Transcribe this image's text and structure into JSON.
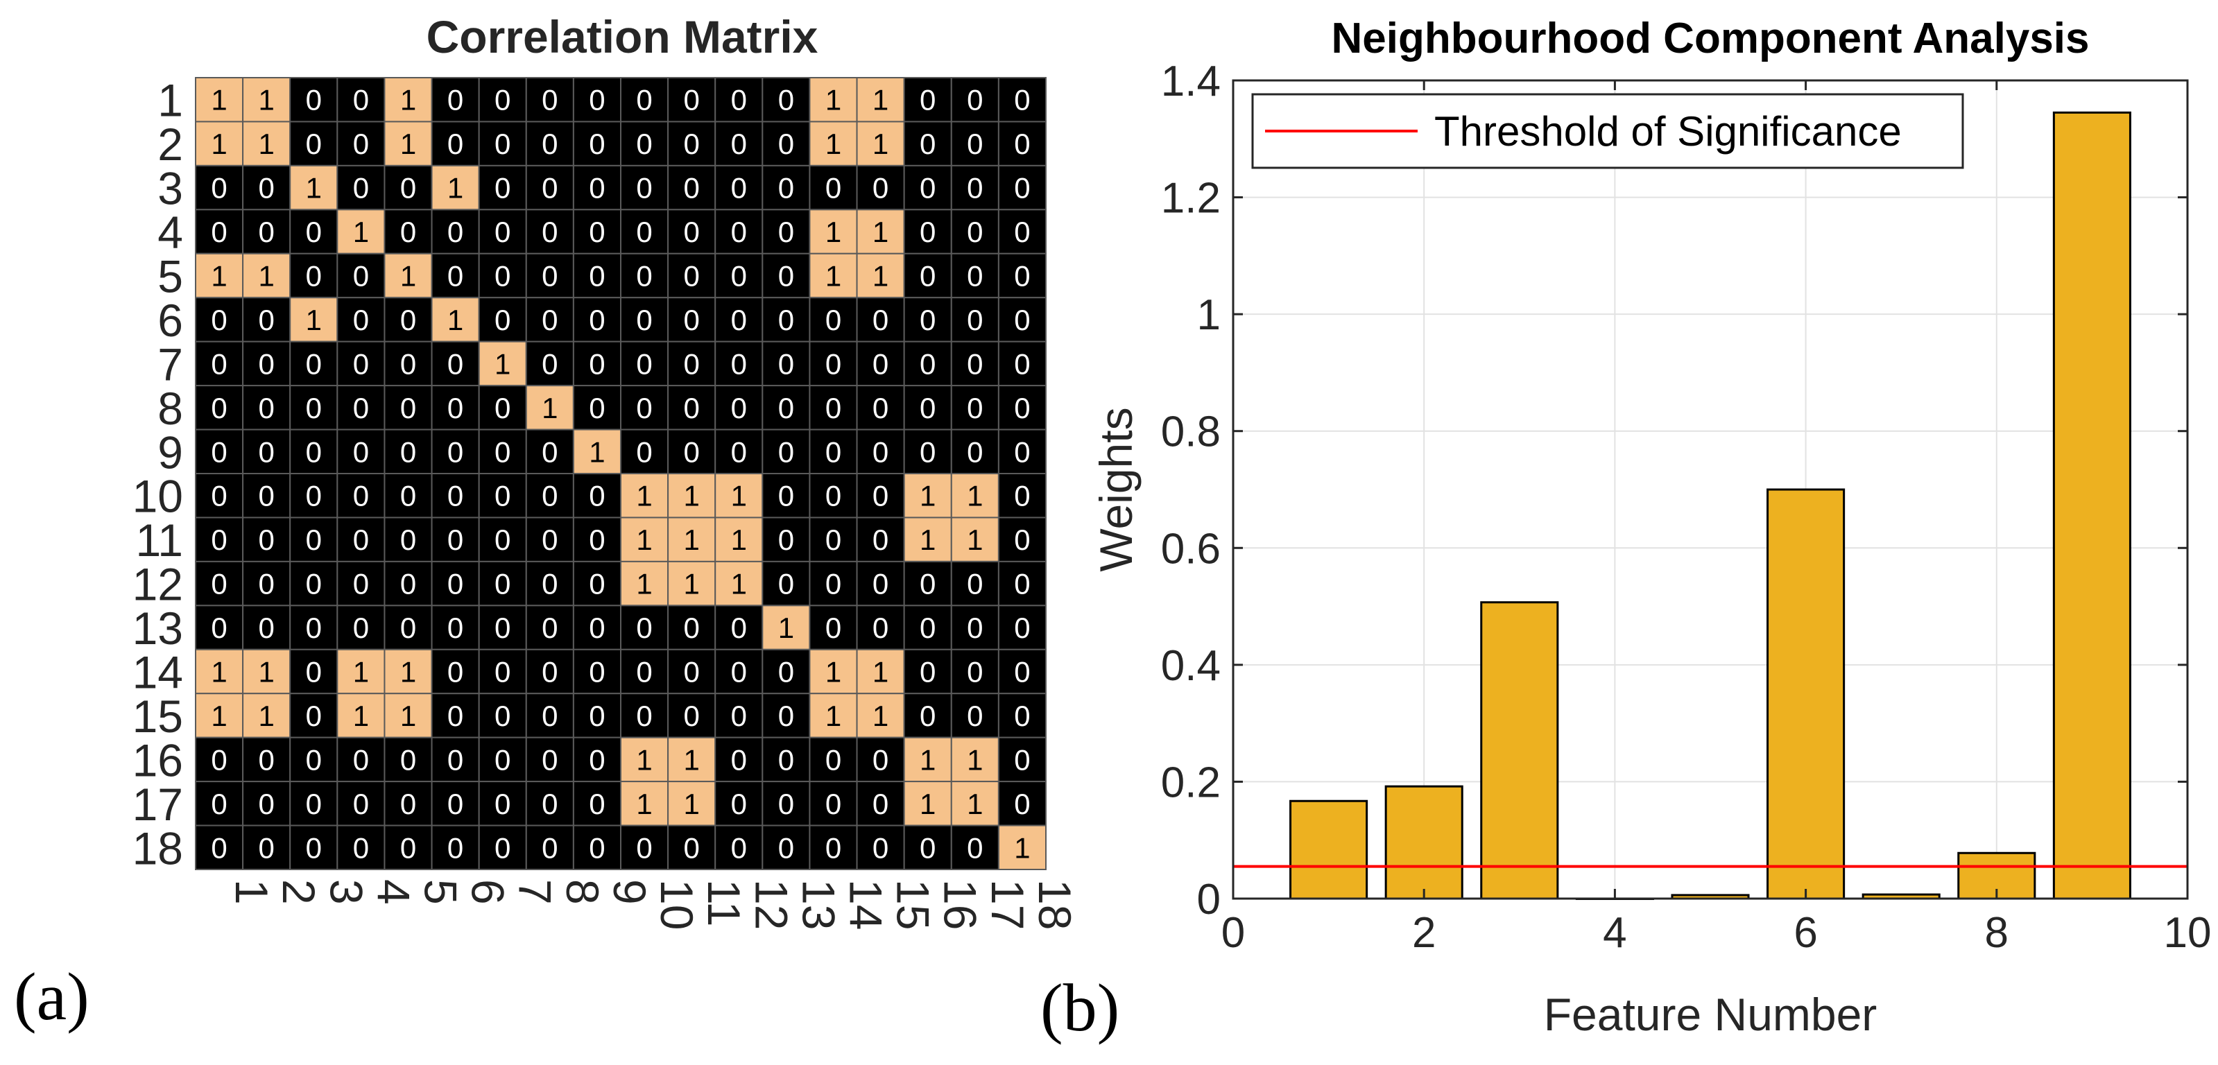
{
  "colors": {
    "matrix_background": "#000000",
    "matrix_one_cell": "#f6c28b",
    "matrix_grid": "#5a5a5a",
    "bar_fill": "#edb120",
    "bar_edge": "#000000",
    "threshold_line": "#ff0000",
    "gridline": "#e2e2e2",
    "axis_text": "#262626"
  },
  "panel_labels": {
    "a": "(a)",
    "b": "(b)"
  },
  "chart_data": [
    {
      "type": "heatmap",
      "title": "Correlation Matrix",
      "row_labels": [
        "1",
        "2",
        "3",
        "4",
        "5",
        "6",
        "7",
        "8",
        "9",
        "10",
        "11",
        "12",
        "13",
        "14",
        "15",
        "16",
        "17",
        "18"
      ],
      "col_labels": [
        "1",
        "2",
        "3",
        "4",
        "5",
        "6",
        "7",
        "8",
        "9",
        "10",
        "11",
        "12",
        "13",
        "14",
        "15",
        "16",
        "17",
        "18"
      ],
      "values": [
        [
          1,
          1,
          0,
          0,
          1,
          0,
          0,
          0,
          0,
          0,
          0,
          0,
          0,
          1,
          1,
          0,
          0,
          0
        ],
        [
          1,
          1,
          0,
          0,
          1,
          0,
          0,
          0,
          0,
          0,
          0,
          0,
          0,
          1,
          1,
          0,
          0,
          0
        ],
        [
          0,
          0,
          1,
          0,
          0,
          1,
          0,
          0,
          0,
          0,
          0,
          0,
          0,
          0,
          0,
          0,
          0,
          0
        ],
        [
          0,
          0,
          0,
          1,
          0,
          0,
          0,
          0,
          0,
          0,
          0,
          0,
          0,
          1,
          1,
          0,
          0,
          0
        ],
        [
          1,
          1,
          0,
          0,
          1,
          0,
          0,
          0,
          0,
          0,
          0,
          0,
          0,
          1,
          1,
          0,
          0,
          0
        ],
        [
          0,
          0,
          1,
          0,
          0,
          1,
          0,
          0,
          0,
          0,
          0,
          0,
          0,
          0,
          0,
          0,
          0,
          0
        ],
        [
          0,
          0,
          0,
          0,
          0,
          0,
          1,
          0,
          0,
          0,
          0,
          0,
          0,
          0,
          0,
          0,
          0,
          0
        ],
        [
          0,
          0,
          0,
          0,
          0,
          0,
          0,
          1,
          0,
          0,
          0,
          0,
          0,
          0,
          0,
          0,
          0,
          0
        ],
        [
          0,
          0,
          0,
          0,
          0,
          0,
          0,
          0,
          1,
          0,
          0,
          0,
          0,
          0,
          0,
          0,
          0,
          0
        ],
        [
          0,
          0,
          0,
          0,
          0,
          0,
          0,
          0,
          0,
          1,
          1,
          1,
          0,
          0,
          0,
          1,
          1,
          0
        ],
        [
          0,
          0,
          0,
          0,
          0,
          0,
          0,
          0,
          0,
          1,
          1,
          1,
          0,
          0,
          0,
          1,
          1,
          0
        ],
        [
          0,
          0,
          0,
          0,
          0,
          0,
          0,
          0,
          0,
          1,
          1,
          1,
          0,
          0,
          0,
          0,
          0,
          0
        ],
        [
          0,
          0,
          0,
          0,
          0,
          0,
          0,
          0,
          0,
          0,
          0,
          0,
          1,
          0,
          0,
          0,
          0,
          0
        ],
        [
          1,
          1,
          0,
          1,
          1,
          0,
          0,
          0,
          0,
          0,
          0,
          0,
          0,
          1,
          1,
          0,
          0,
          0
        ],
        [
          1,
          1,
          0,
          1,
          1,
          0,
          0,
          0,
          0,
          0,
          0,
          0,
          0,
          1,
          1,
          0,
          0,
          0
        ],
        [
          0,
          0,
          0,
          0,
          0,
          0,
          0,
          0,
          0,
          1,
          1,
          0,
          0,
          0,
          0,
          1,
          1,
          0
        ],
        [
          0,
          0,
          0,
          0,
          0,
          0,
          0,
          0,
          0,
          1,
          1,
          0,
          0,
          0,
          0,
          1,
          1,
          0
        ],
        [
          0,
          0,
          0,
          0,
          0,
          0,
          0,
          0,
          0,
          0,
          0,
          0,
          0,
          0,
          0,
          0,
          0,
          1
        ]
      ]
    },
    {
      "type": "bar",
      "title": "Neighbourhood Component Analysis",
      "xlabel": "Feature Number",
      "ylabel": "Weights",
      "x": [
        1,
        2,
        3,
        4,
        5,
        6,
        7,
        8,
        9
      ],
      "values": [
        0.167,
        0.192,
        0.507,
        0.0,
        0.006,
        0.7,
        0.007,
        0.078,
        1.345
      ],
      "xlim": [
        0,
        10
      ],
      "ylim": [
        0,
        1.4
      ],
      "xticks": [
        0,
        2,
        4,
        6,
        8,
        10
      ],
      "xtick_labels": [
        "0",
        "2",
        "4",
        "6",
        "8",
        "10"
      ],
      "yticks": [
        0,
        0.2,
        0.4,
        0.6,
        0.8,
        1.0,
        1.2,
        1.4
      ],
      "ytick_labels": [
        "0",
        "0.2",
        "0.4",
        "0.6",
        "0.8",
        "1",
        "1.2",
        "1.4"
      ],
      "grid": true,
      "threshold": {
        "label": "Threshold of Significance",
        "value": 0.055
      },
      "legend_position": "top-left"
    }
  ]
}
